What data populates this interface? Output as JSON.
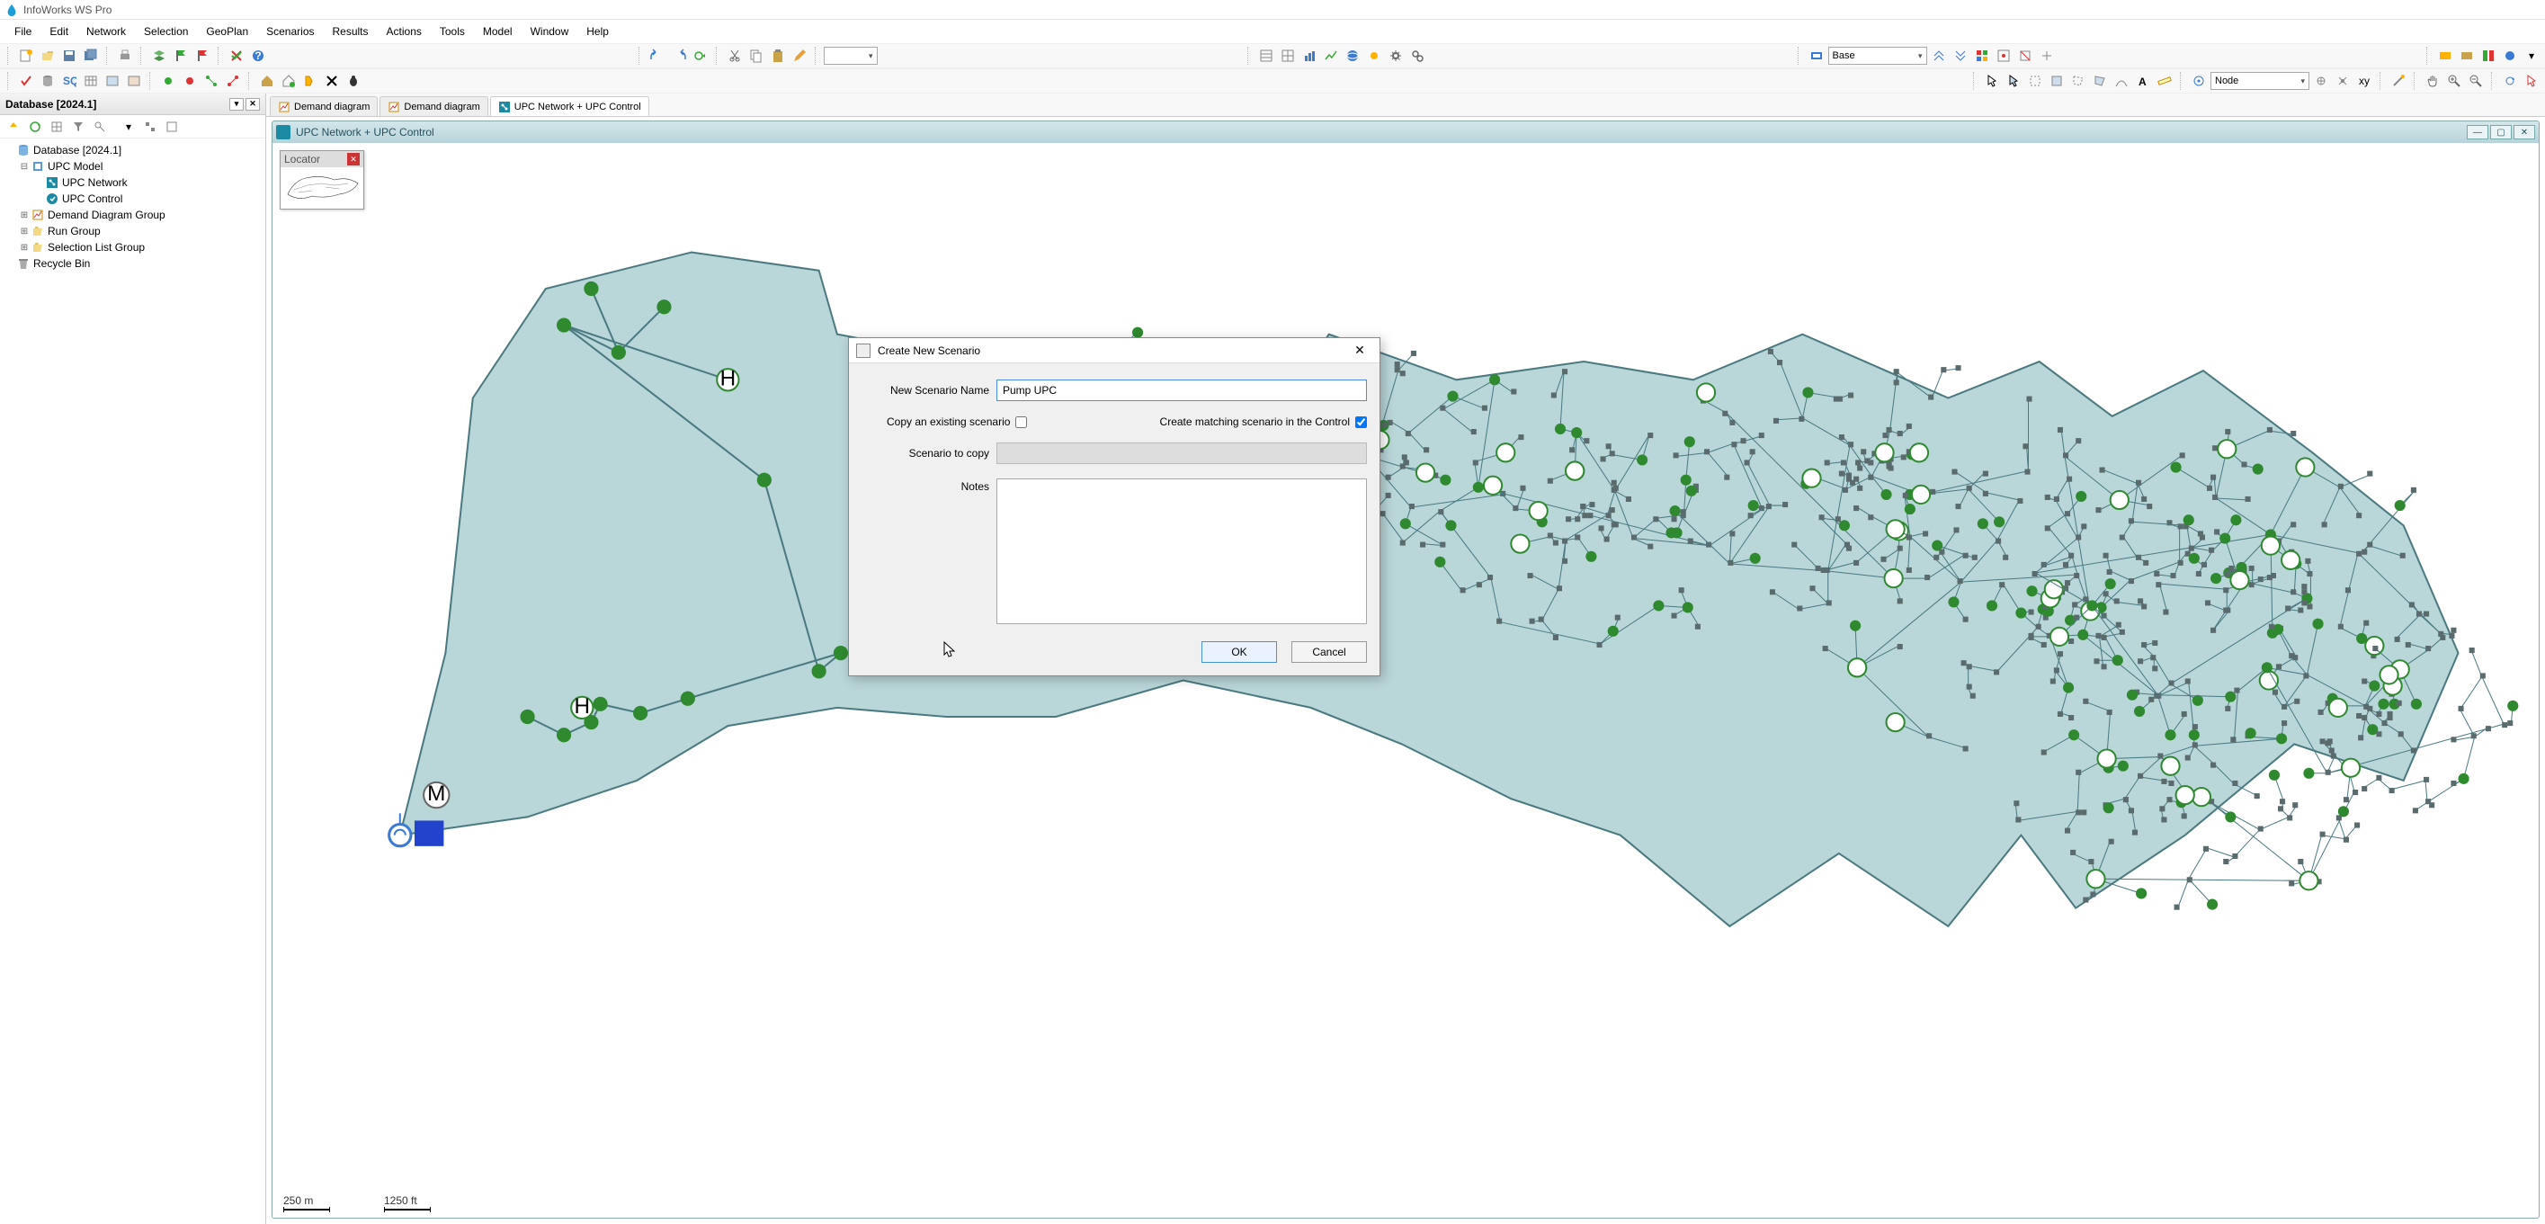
{
  "app_title": "InfoWorks WS Pro",
  "menu": [
    "File",
    "Edit",
    "Network",
    "Selection",
    "GeoPlan",
    "Scenarios",
    "Results",
    "Actions",
    "Tools",
    "Model",
    "Window",
    "Help"
  ],
  "scenario_combo": "Base",
  "object_type_combo": "Node",
  "db_panel": {
    "title": "Database [2024.1]",
    "tree": [
      {
        "level": 0,
        "exp": "",
        "icon": "db",
        "label": "Database [2024.1]"
      },
      {
        "level": 1,
        "exp": "-",
        "icon": "model",
        "label": "UPC Model"
      },
      {
        "level": 2,
        "exp": "",
        "icon": "net",
        "label": "UPC Network"
      },
      {
        "level": 2,
        "exp": "",
        "icon": "ctrl",
        "label": "UPC Control"
      },
      {
        "level": 1,
        "exp": "+",
        "icon": "dd",
        "label": "Demand Diagram Group"
      },
      {
        "level": 1,
        "exp": "+",
        "icon": "run",
        "label": "Run Group"
      },
      {
        "level": 1,
        "exp": "+",
        "icon": "sel",
        "label": "Selection List Group"
      },
      {
        "level": 0,
        "exp": "",
        "icon": "bin",
        "label": "Recycle Bin"
      }
    ]
  },
  "doc_tabs": [
    {
      "icon": "dd",
      "label": "Demand diagram",
      "active": false
    },
    {
      "icon": "dd",
      "label": "Demand diagram",
      "active": false
    },
    {
      "icon": "net",
      "label": "UPC Network + UPC Control",
      "active": true
    }
  ],
  "mdi_title": "UPC Network + UPC Control",
  "locator_title": "Locator",
  "scale": [
    {
      "label": "250 m"
    },
    {
      "label": "1250 ft"
    }
  ],
  "dialog": {
    "title": "Create New Scenario",
    "name_label": "New Scenario Name",
    "name_value": "Pump UPC",
    "copy_label": "Copy an existing scenario",
    "copy_checked": false,
    "match_label": "Create matching scenario in the Control",
    "match_checked": true,
    "scenario_copy_label": "Scenario to copy",
    "notes_label": "Notes",
    "ok": "OK",
    "cancel": "Cancel"
  },
  "map": {
    "polygon_fill": "#b9d6d9",
    "polygon_stroke": "#4a7a80",
    "node_green": "#2f8a2f",
    "node_dark": "#5a6b6e",
    "reservoir": "#2244cc"
  }
}
